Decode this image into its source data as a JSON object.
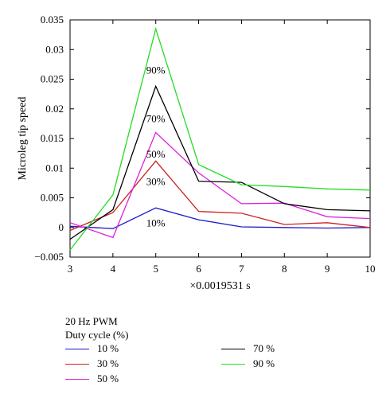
{
  "chart_data": {
    "type": "line",
    "xlabel": "×0.0019531 s",
    "ylabel": "Microleg tip speed",
    "xlim": [
      3,
      10
    ],
    "ylim": [
      -0.005,
      0.035
    ],
    "x": [
      3,
      4,
      5,
      6,
      7,
      8,
      9,
      10
    ],
    "x_ticks": [
      "3",
      "4",
      "5",
      "6",
      "7",
      "8",
      "9",
      "10"
    ],
    "y_ticks": [
      "−0.005",
      "0",
      "0.005",
      "0.01",
      "0.015",
      "0.02",
      "0.025",
      "0.03",
      "0.035"
    ],
    "y_tick_values": [
      -0.005,
      0,
      0.005,
      0.01,
      0.015,
      0.02,
      0.025,
      0.03,
      0.035
    ],
    "grid": false,
    "legend_title_line1": "20 Hz PWM",
    "legend_title_line2": "Duty cycle (%)",
    "legend_placement": "bottom",
    "series": [
      {
        "name": "10 %",
        "color": "#1a1acc",
        "values": [
          0.0002,
          -0.0002,
          0.0033,
          0.0013,
          0.0001,
          0.0,
          -0.0001,
          0.0
        ]
      },
      {
        "name": "30 %",
        "color": "#cc2222",
        "values": [
          -0.0005,
          0.0025,
          0.0112,
          0.0027,
          0.0024,
          0.0005,
          0.0008,
          0.0
        ]
      },
      {
        "name": "50 %",
        "color": "#dd22dd",
        "values": [
          0.0008,
          -0.0017,
          0.016,
          0.0092,
          0.004,
          0.0041,
          0.0018,
          0.0015
        ]
      },
      {
        "name": "70 %",
        "color": "#000000",
        "values": [
          -0.002,
          0.003,
          0.0238,
          0.0078,
          0.0076,
          0.004,
          0.003,
          0.0028
        ]
      },
      {
        "name": "90 %",
        "color": "#22dd22",
        "values": [
          -0.0038,
          0.0055,
          0.0335,
          0.0106,
          0.0072,
          0.0069,
          0.0065,
          0.0063
        ]
      }
    ],
    "annotations": [
      {
        "text": "90%",
        "x": 5,
        "y": 0.0265
      },
      {
        "text": "70%",
        "x": 5,
        "y": 0.0183
      },
      {
        "text": "50%",
        "x": 5,
        "y": 0.0123
      },
      {
        "text": "30%",
        "x": 5,
        "y": 0.0077
      },
      {
        "text": "10%",
        "x": 5,
        "y": 0.0007
      }
    ]
  }
}
